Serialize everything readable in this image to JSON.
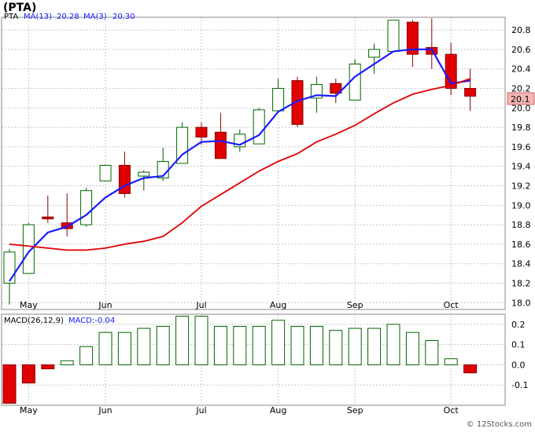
{
  "header": {
    "ticker_label": "(PTA)"
  },
  "legend": {
    "symbol": "PTA",
    "ma13_label": "MA(13)",
    "ma13_value": "20.28",
    "ma3_label": "MA(3)",
    "ma3_value": "20.30"
  },
  "macd_legend": {
    "params": "MACD(26,12,9)",
    "value_label": "MACD:-0.04"
  },
  "watermark": "© 12Stocks.com",
  "last_price_badge": "20.1",
  "colors": {
    "up": "#006400",
    "down": "#e00000",
    "ma13": "#1a1aff",
    "ma3": "#e00000",
    "grid": "#c8c8c8"
  },
  "chart_data": [
    {
      "type": "candlestick",
      "title": "(PTA)",
      "months": [
        {
          "label": "May",
          "at_candle": 1
        },
        {
          "label": "Jun",
          "at_candle": 5
        },
        {
          "label": "Jul",
          "at_candle": 10
        },
        {
          "label": "Aug",
          "at_candle": 14
        },
        {
          "label": "Sep",
          "at_candle": 18
        },
        {
          "label": "Oct",
          "at_candle": 23
        }
      ],
      "y_ticks": [
        "18.0",
        "18.2",
        "18.4",
        "18.6",
        "18.8",
        "19.0",
        "19.2",
        "19.4",
        "19.6",
        "19.8",
        "20.0",
        "20.2",
        "20.4",
        "20.6",
        "20.8"
      ],
      "ylim": [
        17.93,
        20.93
      ],
      "candles": [
        {
          "o": 18.2,
          "h": 18.55,
          "l": 17.98,
          "c": 18.52
        },
        {
          "o": 18.3,
          "h": 18.82,
          "l": 18.3,
          "c": 18.8
        },
        {
          "o": 18.88,
          "h": 19.1,
          "l": 18.82,
          "c": 18.86
        },
        {
          "o": 18.82,
          "h": 19.12,
          "l": 18.68,
          "c": 18.76
        },
        {
          "o": 18.8,
          "h": 19.18,
          "l": 18.78,
          "c": 19.15
        },
        {
          "o": 19.25,
          "h": 19.42,
          "l": 19.25,
          "c": 19.41
        },
        {
          "o": 19.41,
          "h": 19.55,
          "l": 19.08,
          "c": 19.12
        },
        {
          "o": 19.3,
          "h": 19.36,
          "l": 19.15,
          "c": 19.34
        },
        {
          "o": 19.28,
          "h": 19.59,
          "l": 19.25,
          "c": 19.45
        },
        {
          "o": 19.43,
          "h": 19.85,
          "l": 19.43,
          "c": 19.8
        },
        {
          "o": 19.8,
          "h": 19.85,
          "l": 19.62,
          "c": 19.7
        },
        {
          "o": 19.75,
          "h": 19.95,
          "l": 19.48,
          "c": 19.48
        },
        {
          "o": 19.6,
          "h": 19.78,
          "l": 19.55,
          "c": 19.73
        },
        {
          "o": 19.63,
          "h": 20.0,
          "l": 19.63,
          "c": 19.98
        },
        {
          "o": 19.97,
          "h": 20.3,
          "l": 19.97,
          "c": 20.2
        },
        {
          "o": 20.28,
          "h": 20.32,
          "l": 19.8,
          "c": 19.83
        },
        {
          "o": 20.1,
          "h": 20.32,
          "l": 19.95,
          "c": 20.24
        },
        {
          "o": 20.25,
          "h": 20.3,
          "l": 20.05,
          "c": 20.15
        },
        {
          "o": 20.08,
          "h": 20.5,
          "l": 20.08,
          "c": 20.45
        },
        {
          "o": 20.52,
          "h": 20.66,
          "l": 20.35,
          "c": 20.6
        },
        {
          "o": 20.58,
          "h": 20.9,
          "l": 20.58,
          "c": 20.9
        },
        {
          "o": 20.88,
          "h": 20.9,
          "l": 20.42,
          "c": 20.55
        },
        {
          "o": 20.62,
          "h": 20.92,
          "l": 20.4,
          "c": 20.55
        },
        {
          "o": 20.55,
          "h": 20.67,
          "l": 20.13,
          "c": 20.2
        },
        {
          "o": 20.2,
          "h": 20.4,
          "l": 19.97,
          "c": 20.12
        }
      ],
      "series": [
        {
          "name": "MA(13)",
          "values": [
            18.22,
            18.52,
            18.72,
            18.78,
            18.9,
            19.08,
            19.2,
            19.28,
            19.3,
            19.52,
            19.65,
            19.66,
            19.62,
            19.72,
            19.96,
            20.07,
            20.13,
            20.12,
            20.32,
            20.45,
            20.58,
            20.6,
            20.6,
            20.25,
            20.28
          ]
        },
        {
          "name": "MA(3)",
          "values": [
            18.6,
            null,
            null,
            18.54,
            18.54,
            18.56,
            18.6,
            18.63,
            18.68,
            18.82,
            18.99,
            19.11,
            19.23,
            19.35,
            19.45,
            19.53,
            19.65,
            19.73,
            19.82,
            19.94,
            20.05,
            20.14,
            20.19,
            20.23,
            20.3
          ]
        }
      ]
    },
    {
      "type": "bar",
      "title": "MACD(26,12,9)",
      "y_ticks": [
        "0.2",
        "0.1",
        "0.0",
        "-0.1"
      ],
      "ylim": [
        -0.2,
        0.25
      ],
      "values": [
        -0.19,
        -0.09,
        -0.02,
        0.02,
        0.09,
        0.16,
        0.16,
        0.18,
        0.19,
        0.24,
        0.24,
        0.19,
        0.19,
        0.19,
        0.22,
        0.19,
        0.19,
        0.17,
        0.18,
        0.18,
        0.2,
        0.16,
        0.12,
        0.03,
        -0.04
      ]
    }
  ]
}
